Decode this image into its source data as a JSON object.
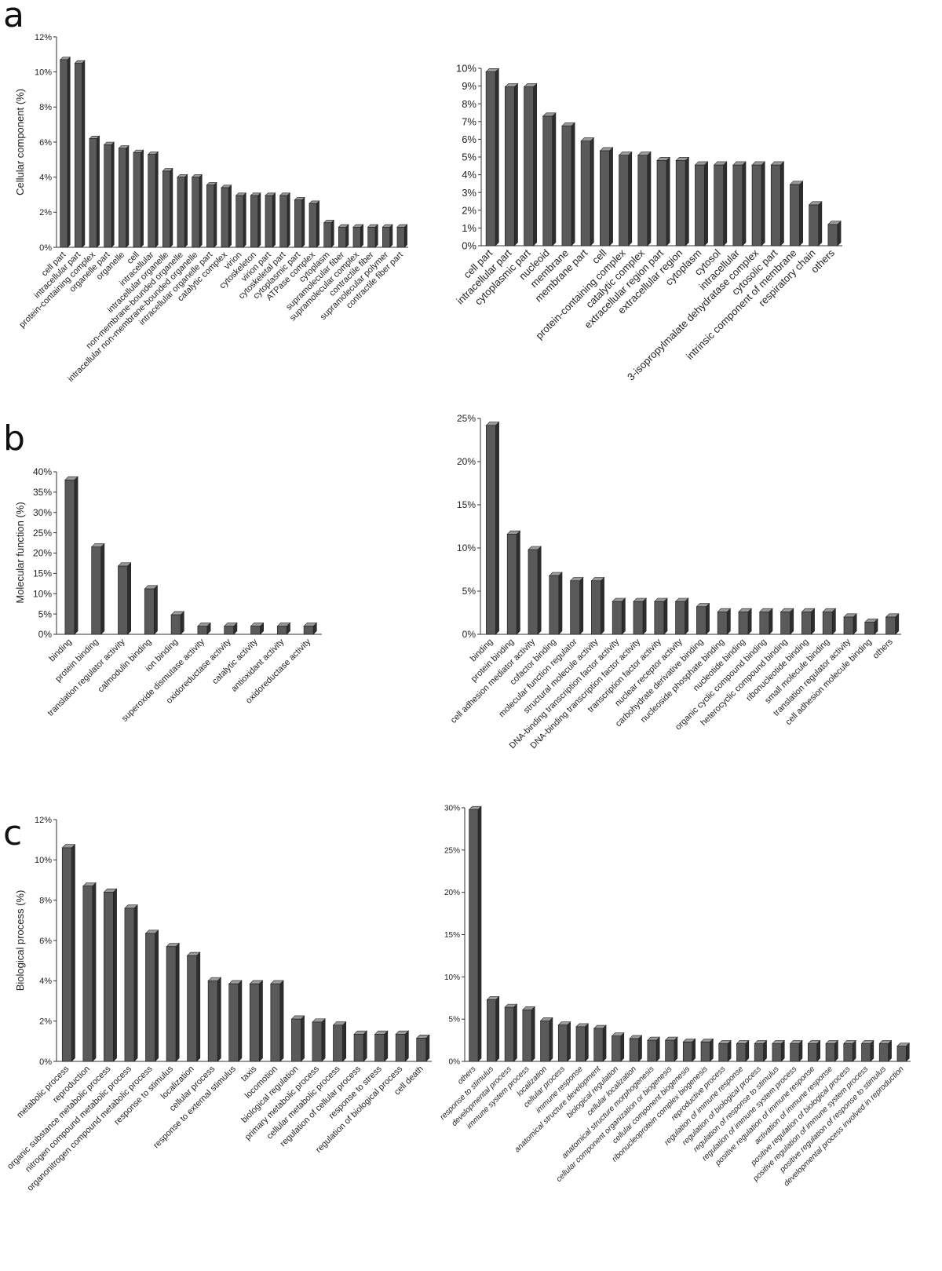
{
  "panels": [
    {
      "letter": "a"
    },
    {
      "letter": "b"
    },
    {
      "letter": "c"
    }
  ],
  "chart_data": [
    {
      "panel": "a",
      "type": "bar",
      "ylabel": "Cellular component (%)",
      "ylim": [
        0,
        12
      ],
      "yticks": [
        "0%",
        "2%",
        "4%",
        "6%",
        "8%",
        "10%",
        "12%"
      ],
      "categories": [
        "cell part",
        "intracellular part",
        "protein-containing complex",
        "organelle part",
        "organelle",
        "cell",
        "intracellular",
        "intracellular organelle",
        "non-membrane-bounded organelle",
        "intracellular non-membrane-bounded organelle",
        "intracellular organelle part",
        "catalytic complex",
        "virion",
        "cytoskeleton",
        "virion part",
        "cytoskeletal part",
        "cytoplasmic part",
        "ATPase complex",
        "cytoplasm",
        "supramolecular fiber",
        "supramolecular complex",
        "contractile fiber",
        "supramolecular polymer",
        "contractile fiber part"
      ],
      "values": [
        10.7,
        10.5,
        6.2,
        5.85,
        5.65,
        5.4,
        5.3,
        4.35,
        4.0,
        4.0,
        3.55,
        3.4,
        2.95,
        2.95,
        2.95,
        2.95,
        2.7,
        2.5,
        1.4,
        1.15,
        1.15,
        1.15,
        1.15,
        1.15
      ]
    },
    {
      "panel": "a",
      "type": "bar",
      "ylabel": "",
      "ylim": [
        0,
        10
      ],
      "yticks": [
        "0%",
        "1%",
        "2%",
        "3%",
        "4%",
        "5%",
        "6%",
        "7%",
        "8%",
        "9%",
        "10%"
      ],
      "categories": [
        "cell part",
        "intracellular part",
        "cytoplasmic part",
        "nucleoid",
        "membrane",
        "membrane part",
        "cell",
        "protein-containing complex",
        "catalytic complex",
        "extracellular region part",
        "extracellular region",
        "cytoplasm",
        "cytosol",
        "intracellular",
        "3-isopropylmalate dehydratase complex",
        "cytosolic part",
        "intrinsic component of membrane",
        "respiratory chain",
        "others"
      ],
      "values": [
        9.8,
        8.95,
        8.95,
        7.3,
        6.75,
        5.9,
        5.35,
        5.1,
        5.1,
        4.8,
        4.8,
        4.55,
        4.55,
        4.55,
        4.55,
        4.55,
        3.45,
        2.3,
        1.2
      ]
    },
    {
      "panel": "b",
      "type": "bar",
      "ylabel": "Molecular function (%)",
      "ylim": [
        0,
        40
      ],
      "yticks": [
        "0%",
        "5%",
        "10%",
        "15%",
        "20%",
        "25%",
        "30%",
        "35%",
        "40%"
      ],
      "categories": [
        "binding",
        "protein binding",
        "translation regulator activity",
        "calmodulin binding",
        "ion binding",
        "superoxide dismutase activity",
        "oxidoreductase activity",
        "catalytic activity",
        "antioxidant activity",
        "oxidoreductase activity"
      ],
      "values": [
        38,
        21.5,
        16.8,
        11.2,
        4.8,
        2.0,
        2.0,
        2.0,
        2.0,
        2.0
      ]
    },
    {
      "panel": "b",
      "type": "bar",
      "ylabel": "",
      "ylim": [
        0,
        25
      ],
      "yticks": [
        "0%",
        "5%",
        "10%",
        "15%",
        "20%",
        "25%"
      ],
      "categories": [
        "binding",
        "protein binding",
        "cell adhesion mediator activity",
        "cofactor binding",
        "molecular function regulator",
        "structural molecule activity",
        "DNA-binding transcription factor activity",
        "DNA-binding transcription factor activity",
        "transcription factor activity",
        "nuclear receptor activity",
        "carbohydrate derivative binding",
        "nucleoside phosphate binding",
        "nucleotide binding",
        "organic cyclic compound binding",
        "heterocyclic compound binding",
        "ribonucleotide binding",
        "small molecule binding",
        "translation regulator activity",
        "cell adhesion molecule binding",
        "others"
      ],
      "values": [
        24.2,
        11.6,
        9.8,
        6.8,
        6.2,
        6.2,
        3.8,
        3.8,
        3.8,
        3.8,
        3.2,
        2.6,
        2.6,
        2.6,
        2.6,
        2.6,
        2.6,
        2.0,
        1.4,
        2.0
      ]
    },
    {
      "panel": "c",
      "type": "bar",
      "ylabel": "Biological process (%)",
      "ylim": [
        0,
        12
      ],
      "yticks": [
        "0%",
        "2%",
        "4%",
        "6%",
        "8%",
        "10%",
        "12%"
      ],
      "categories": [
        "metabolic process",
        "reproduction",
        "organic substance metabolic process",
        "nitrogen compound metabolic process",
        "organonitrogen compound metabolic process",
        "response to stimulus",
        "localization",
        "cellular process",
        "response to external stimulus",
        "taxis",
        "locomotion",
        "biological regulation",
        "primary metabolic process",
        "cellular metabolic process",
        "regulation of cellular process",
        "response to stress",
        "regulation of biological process",
        "cell death"
      ],
      "values": [
        10.6,
        8.7,
        8.4,
        7.6,
        6.35,
        5.7,
        5.25,
        4.0,
        3.85,
        3.85,
        3.85,
        2.1,
        1.95,
        1.8,
        1.35,
        1.35,
        1.35,
        1.15
      ]
    },
    {
      "panel": "c",
      "type": "bar",
      "ylabel": "",
      "ylim": [
        0,
        30
      ],
      "yticks": [
        "0%",
        "5%",
        "10%",
        "15%",
        "20%",
        "25%",
        "30%"
      ],
      "italic_labels": true,
      "categories": [
        "others",
        "response to stimulus",
        "developmental process",
        "immune system process",
        "localization",
        "cellular process",
        "immune response",
        "anatomical structure development",
        "biological regulation",
        "cellular localization",
        "anatomical structure morphogenesis",
        "cellular component organization or biogenesis",
        "cellular component biogenesis",
        "ribonucleoprotein complex biogenesis",
        "reproductive process",
        "regulation of immune response",
        "regulation of biological process",
        "regulation of response to stimulus",
        "regulation of immune system process",
        "positive regulation of immune response",
        "activation of immune response",
        "positive regulation of biological process",
        "positive regulation of immune system process",
        "positive regulation of response to stimulus",
        "developmental process involved in reproduction"
      ],
      "values": [
        29.8,
        7.3,
        6.4,
        6.1,
        4.8,
        4.3,
        4.1,
        3.9,
        3.0,
        2.7,
        2.5,
        2.5,
        2.3,
        2.3,
        2.1,
        2.1,
        2.1,
        2.1,
        2.1,
        2.1,
        2.1,
        2.1,
        2.1,
        2.1,
        1.8
      ]
    }
  ]
}
